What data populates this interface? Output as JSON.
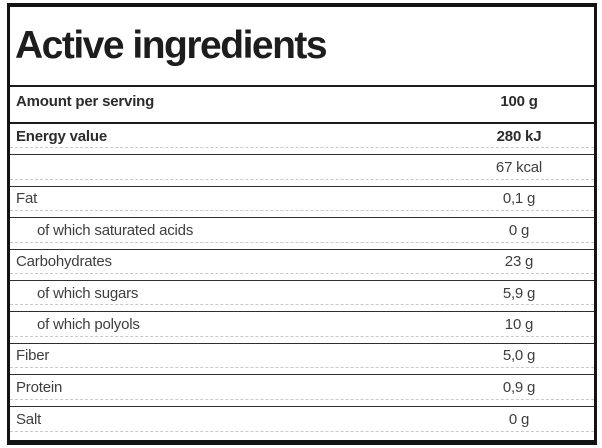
{
  "title": "Active ingredients",
  "colors": {
    "panel_border": "#131313",
    "section_rule": "#1c1c1c",
    "row_divider_solid": "#2e2e2e",
    "row_divider_dashed": "#c9c9c9",
    "text_emphasis": "#2c2c2c",
    "text_regular": "#3e3e3e",
    "background": "#ffffff"
  },
  "table": {
    "rows": [
      {
        "label": "Amount per serving",
        "value": "100 g",
        "emphasis": true,
        "indent": false
      },
      {
        "label": "Energy value",
        "value": "280 kJ",
        "emphasis": true,
        "indent": false
      },
      {
        "label": "",
        "value": "67 kcal",
        "emphasis": false,
        "indent": false
      },
      {
        "label": "Fat",
        "value": "0,1 g",
        "emphasis": false,
        "indent": false
      },
      {
        "label": "of which saturated acids",
        "value": "0 g",
        "emphasis": false,
        "indent": true
      },
      {
        "label": "Carbohydrates",
        "value": "23 g",
        "emphasis": false,
        "indent": false
      },
      {
        "label": "of which sugars",
        "value": "5,9 g",
        "emphasis": false,
        "indent": true
      },
      {
        "label": "of which polyols",
        "value": "10 g",
        "emphasis": false,
        "indent": true
      },
      {
        "label": "Fiber",
        "value": "5,0 g",
        "emphasis": false,
        "indent": false
      },
      {
        "label": "Protein",
        "value": "0,9 g",
        "emphasis": false,
        "indent": false
      },
      {
        "label": "Salt",
        "value": "0 g",
        "emphasis": false,
        "indent": false
      }
    ]
  }
}
